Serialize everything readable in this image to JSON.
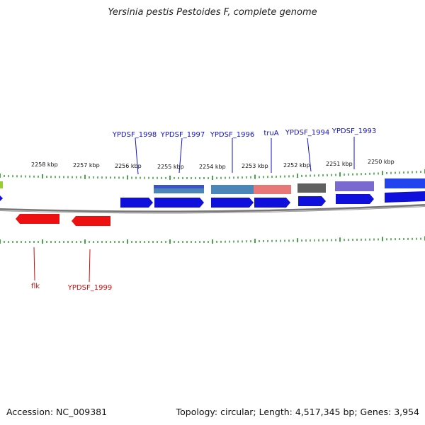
{
  "title": "Yersinia pestis Pestoides F, complete genome",
  "footer": {
    "accession": "Accession: NC_009381",
    "summary": "Topology: circular; Length: 4,517,345 bp; Genes: 3,954"
  },
  "colors": {
    "forward_gene": "#1010dd",
    "reverse_gene": "#dd1010",
    "tick": "#1a8a1a",
    "backbone": "#777777",
    "forward_label": "#1010cc",
    "reverse_label": "#cc1010"
  },
  "scale_labels": [
    "2258 kbp",
    "2257 kbp",
    "2256 kbp",
    "2255 kbp",
    "2254 kbp",
    "2253 kbp",
    "2252 kbp",
    "2251 kbp",
    "2250 kbp"
  ],
  "forward_genes": [
    {
      "label": "YPDSF_1998"
    },
    {
      "label": "YPDSF_1997"
    },
    {
      "label": "YPDSF_1996"
    },
    {
      "label": "truA"
    },
    {
      "label": "YPDSF_1994"
    },
    {
      "label": "YPDSF_1993"
    }
  ],
  "reverse_genes": [
    {
      "label": "flk"
    },
    {
      "label": "YPDSF_1999"
    }
  ],
  "cog_colors": [
    "#3b55c8",
    "#4a86b8",
    "#e87878",
    "#606060",
    "#7a6ad0",
    "#2244ee"
  ]
}
